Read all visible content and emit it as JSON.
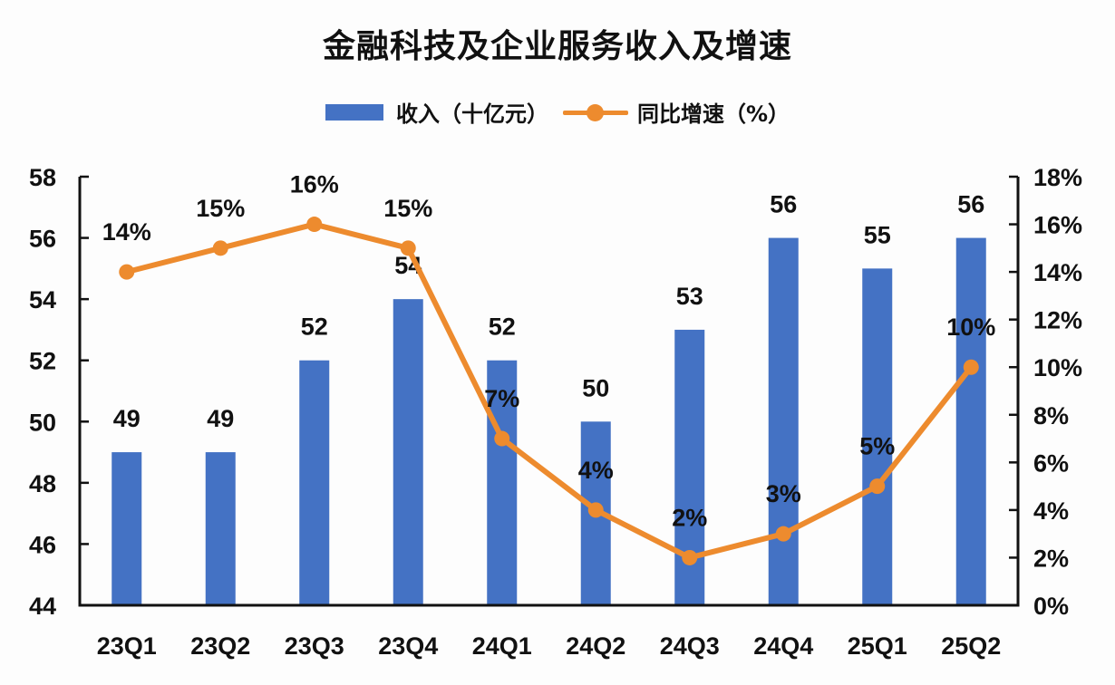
{
  "chart_data": {
    "type": "bar+line",
    "title": "金融科技及企业服务收入及增速",
    "categories": [
      "23Q1",
      "23Q2",
      "23Q3",
      "23Q4",
      "24Q1",
      "24Q2",
      "24Q3",
      "24Q4",
      "25Q1",
      "25Q2"
    ],
    "series": [
      {
        "name": "收入（十亿元）",
        "type": "bar",
        "axis": "left",
        "color": "#4472c4",
        "values": [
          49,
          49,
          52,
          54,
          52,
          50,
          53,
          56,
          55,
          56
        ],
        "labels": [
          "49",
          "49",
          "52",
          "54",
          "52",
          "50",
          "53",
          "56",
          "55",
          "56"
        ]
      },
      {
        "name": "同比增速（%）",
        "type": "line",
        "axis": "right",
        "color": "#ed8b2e",
        "values": [
          14,
          15,
          16,
          15,
          7,
          4,
          2,
          3,
          5,
          10
        ],
        "labels": [
          "14%",
          "15%",
          "16%",
          "15%",
          "7%",
          "4%",
          "2%",
          "3%",
          "5%",
          "10%"
        ]
      }
    ],
    "left_axis": {
      "ylim": [
        44,
        58
      ],
      "ticks": [
        "44",
        "46",
        "48",
        "50",
        "52",
        "54",
        "56",
        "58"
      ]
    },
    "right_axis": {
      "ylim": [
        0,
        18
      ],
      "ticks": [
        "0%",
        "2%",
        "4%",
        "6%",
        "8%",
        "10%",
        "12%",
        "14%",
        "16%",
        "18%"
      ]
    },
    "legend_position": "top-center",
    "grid": false
  }
}
